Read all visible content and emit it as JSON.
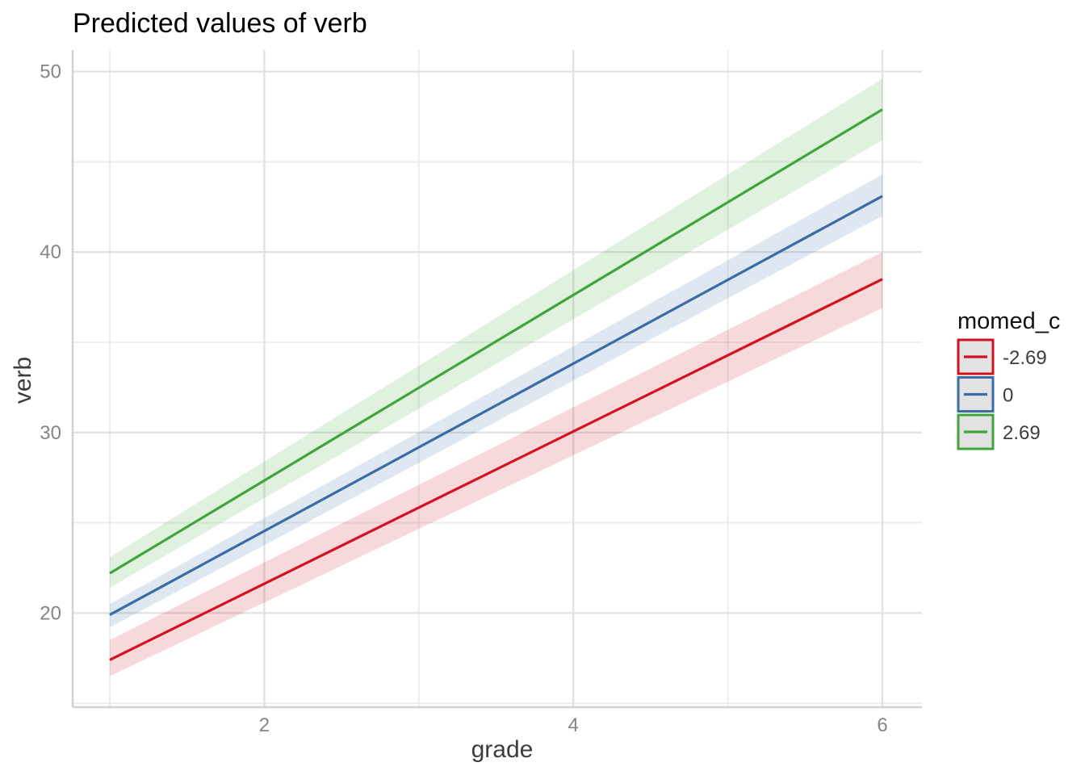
{
  "chart_data": {
    "type": "line",
    "title": "Predicted values of verb",
    "xlabel": "grade",
    "ylabel": "verb",
    "x": [
      1,
      6
    ],
    "series": [
      {
        "name": "-2.69",
        "color": "#D2131F",
        "values": [
          17.4,
          38.5
        ],
        "ci_lower": [
          16.5,
          36.9
        ],
        "ci_upper": [
          18.5,
          40.0
        ]
      },
      {
        "name": "0",
        "color": "#3A6DA5",
        "values": [
          19.9,
          43.1
        ],
        "ci_lower": [
          19.2,
          42.0
        ],
        "ci_upper": [
          20.5,
          44.3
        ]
      },
      {
        "name": "2.69",
        "color": "#3FA53C",
        "values": [
          22.2,
          47.9
        ],
        "ci_lower": [
          21.4,
          46.2
        ],
        "ci_upper": [
          23.1,
          49.6
        ]
      }
    ],
    "legend": {
      "title": "momed_c",
      "position": "right",
      "entries": [
        "-2.69",
        "0",
        "2.69"
      ]
    },
    "x_axis": {
      "ticks": [
        2,
        4,
        6
      ],
      "minor_ticks": [
        1,
        3,
        5
      ],
      "lim": [
        0.76,
        6.26
      ]
    },
    "y_axis": {
      "ticks": [
        20,
        30,
        40,
        50
      ],
      "minor_ticks": [
        15,
        25,
        35,
        45
      ],
      "lim": [
        14.8,
        51.2
      ]
    },
    "grid": true,
    "ribbon_opacity": 0.16,
    "theme": {
      "grid_major_color": "#e2e2e2",
      "grid_minor_color": "#ededed",
      "axis_line_color": "#d2d2d2",
      "legend_key_fill": "#e2e2e2"
    }
  }
}
